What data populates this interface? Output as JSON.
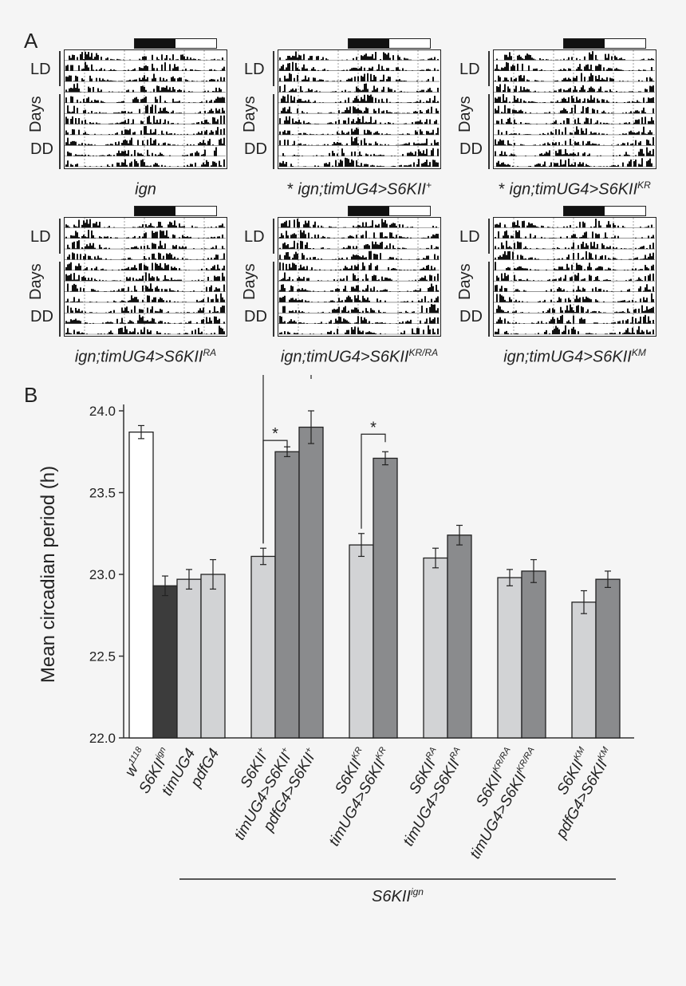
{
  "panel_a": {
    "letter": "A",
    "row_labels": {
      "ld": "LD",
      "days": "Days",
      "dd": "DD"
    },
    "actograms": [
      {
        "prefix": "",
        "base": "ign",
        "sup": ""
      },
      {
        "prefix": "* ",
        "base": "ign;timUG4>S6KII",
        "sup": "+"
      },
      {
        "prefix": "* ",
        "base": "ign;timUG4>S6KII",
        "sup": "KR"
      },
      {
        "prefix": "",
        "base": "ign;timUG4>S6KII",
        "sup": "RA"
      },
      {
        "prefix": "",
        "base": "ign;timUG4>S6KII",
        "sup": "KR/RA"
      },
      {
        "prefix": "",
        "base": "ign;timUG4>S6KII",
        "sup": "KM"
      }
    ]
  },
  "panel_b": {
    "letter": "B"
  },
  "chart_data": {
    "type": "bar",
    "ylabel": "Mean circadian period (h)",
    "ylim": [
      22.0,
      24.0
    ],
    "yticks": [
      "22.0",
      "22.5",
      "23.0",
      "23.5",
      "24.0"
    ],
    "bars": [
      {
        "base": "w",
        "sup": "1118",
        "value": 23.87,
        "error": 0.04,
        "color": "#ffffff",
        "group": 0
      },
      {
        "base": "S6KII",
        "sup": "ign",
        "value": 22.93,
        "error": 0.06,
        "color": "#3c3c3c",
        "group": 0
      },
      {
        "base": "timUG4",
        "sup": "",
        "value": 22.97,
        "error": 0.06,
        "color": "#d2d3d5",
        "group": 0
      },
      {
        "base": "pdfG4",
        "sup": "",
        "value": 23.0,
        "error": 0.09,
        "color": "#d2d3d5",
        "group": 0
      },
      {
        "base": "S6KII",
        "sup": "+",
        "value": 23.11,
        "error": 0.05,
        "color": "#d2d3d5",
        "group": 1
      },
      {
        "base": "timUG4>S6KII",
        "sup": "+",
        "value": 23.75,
        "error": 0.03,
        "color": "#8a8b8d",
        "group": 1
      },
      {
        "base": "pdfG4>S6KII",
        "sup": "+",
        "value": 23.9,
        "error": 0.1,
        "color": "#8a8b8d",
        "group": 1
      },
      {
        "base": "S6KII",
        "sup": "KR",
        "value": 23.18,
        "error": 0.07,
        "color": "#d2d3d5",
        "group": 2
      },
      {
        "base": "timUG4>S6KII",
        "sup": "KR",
        "value": 23.71,
        "error": 0.04,
        "color": "#8a8b8d",
        "group": 2
      },
      {
        "base": "S6KII",
        "sup": "RA",
        "value": 23.1,
        "error": 0.06,
        "color": "#d2d3d5",
        "group": 3
      },
      {
        "base": "timUG4>S6KII",
        "sup": "RA",
        "value": 23.24,
        "error": 0.06,
        "color": "#8a8b8d",
        "group": 3
      },
      {
        "base": "S6KII",
        "sup": "KR/RA",
        "value": 22.98,
        "error": 0.05,
        "color": "#d2d3d5",
        "group": 4
      },
      {
        "base": "timUG4>S6KII",
        "sup": "KR/RA",
        "value": 23.02,
        "error": 0.07,
        "color": "#8a8b8d",
        "group": 4
      },
      {
        "base": "S6KII",
        "sup": "KM",
        "value": 22.83,
        "error": 0.07,
        "color": "#d2d3d5",
        "group": 5
      },
      {
        "base": "pdfG4>S6KII",
        "sup": "KM",
        "value": 22.97,
        "error": 0.05,
        "color": "#8a8b8d",
        "group": 5
      }
    ],
    "significance": [
      {
        "from": 4,
        "to": 5,
        "label": "*"
      },
      {
        "from": 4,
        "to": 6,
        "label": "*"
      },
      {
        "from": 7,
        "to": 8,
        "label": "*"
      }
    ],
    "group_bracket": {
      "base": "S6KII",
      "sup": "ign",
      "from_bar": 4,
      "to_bar": 14
    }
  }
}
